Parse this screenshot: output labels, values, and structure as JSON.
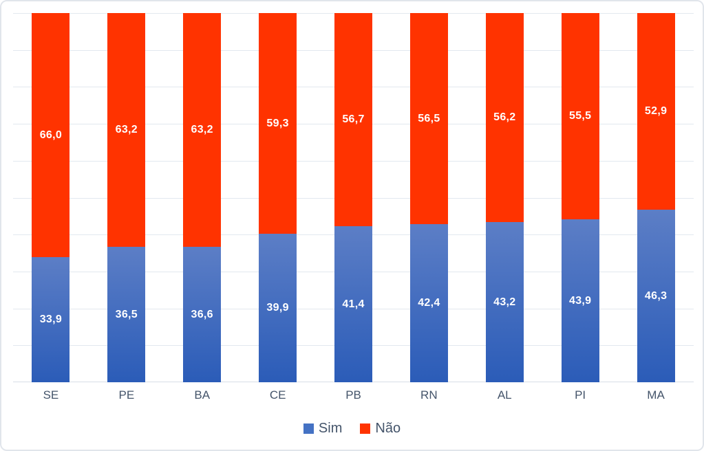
{
  "chart_data": {
    "type": "bar",
    "stacked": true,
    "title": "",
    "xlabel": "",
    "ylabel": "",
    "ylim": [
      0,
      100
    ],
    "gridline_interval": 10,
    "grid": true,
    "legend_position": "bottom",
    "categories": [
      "SE",
      "PE",
      "BA",
      "CE",
      "PB",
      "RN",
      "AL",
      "PI",
      "MA"
    ],
    "series": [
      {
        "name": "Sim",
        "values": [
          33.9,
          36.5,
          36.6,
          39.9,
          41.4,
          42.4,
          43.2,
          43.9,
          46.3
        ],
        "labels": [
          "33,9",
          "36,5",
          "36,6",
          "39,9",
          "41,4",
          "42,4",
          "43,2",
          "43,9",
          "46,3"
        ]
      },
      {
        "name": "Não",
        "values": [
          66.0,
          63.2,
          63.2,
          59.3,
          56.7,
          56.5,
          56.2,
          55.5,
          52.9
        ],
        "labels": [
          "66,0",
          "63,2",
          "63,2",
          "59,3",
          "56,7",
          "56,5",
          "56,2",
          "55,5",
          "52,9"
        ]
      }
    ]
  },
  "colors": {
    "sim_gradient_top": "#5c7ec6",
    "sim_gradient_bottom": "#2b5cb8",
    "sim_legend": "#4472c4",
    "nao": "#ff3300",
    "gridline": "#e2e8ef",
    "axis_line": "#d8dee6",
    "label_text": "#ffffff",
    "category_text": "#44546a",
    "border": "#e1e5eb"
  }
}
